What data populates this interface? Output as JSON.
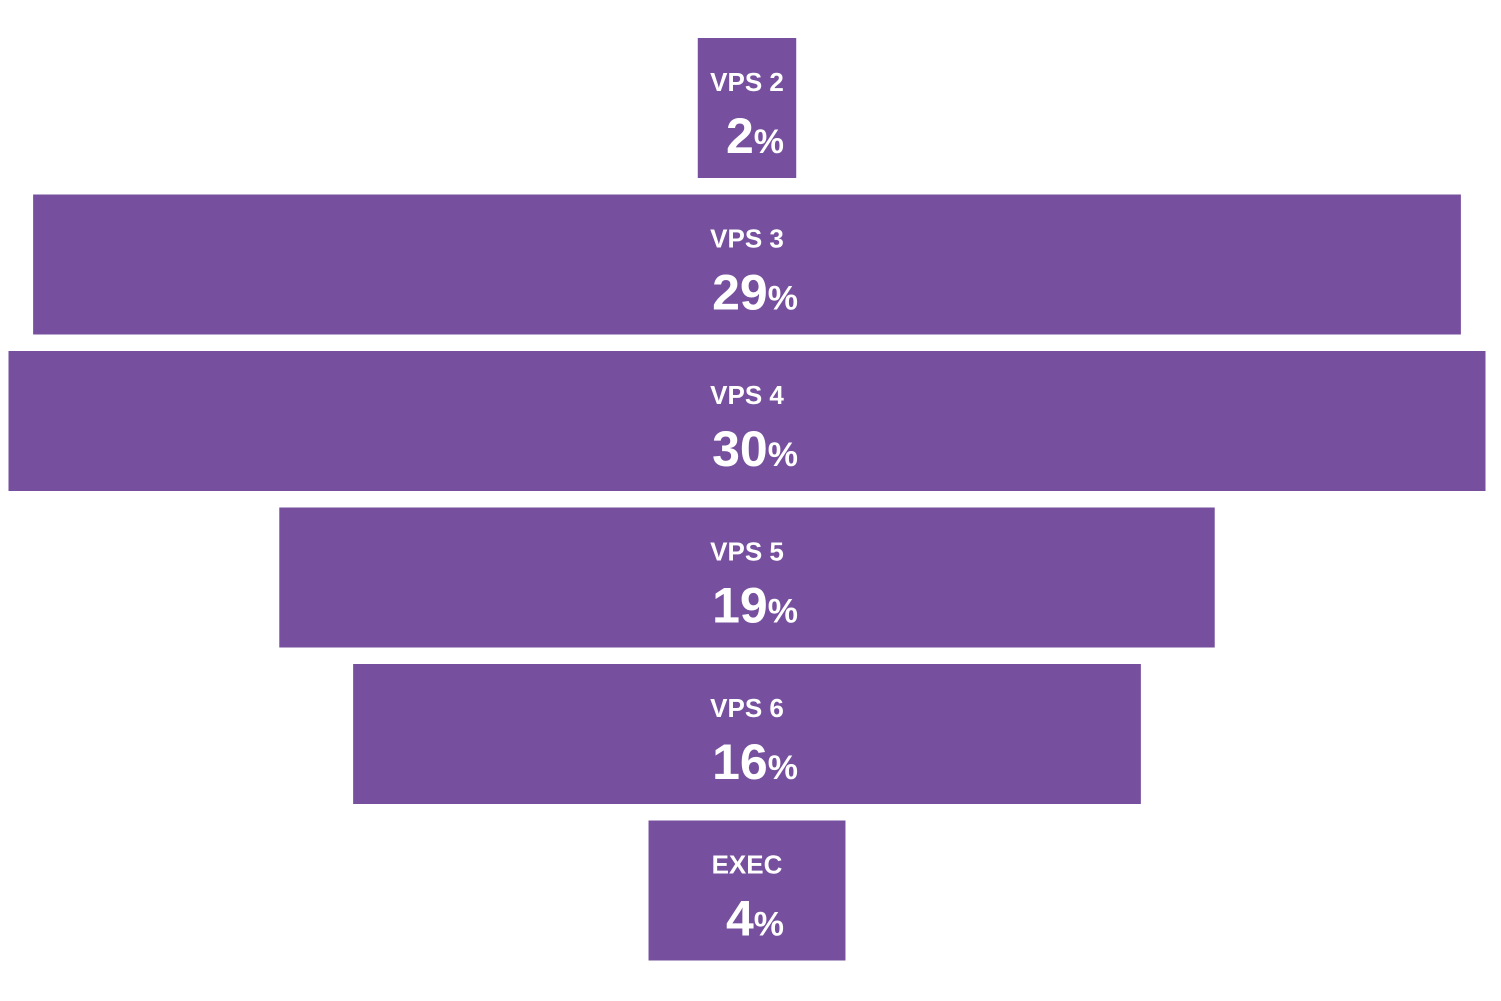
{
  "chart_data": {
    "type": "bar",
    "orientation": "horizontal-centered",
    "categories": [
      "VPS 2",
      "VPS 3",
      "VPS 4",
      "VPS 5",
      "VPS 6",
      "EXEC"
    ],
    "values": [
      2,
      29,
      30,
      19,
      16,
      4
    ],
    "value_labels": [
      "2",
      "29",
      "30",
      "19",
      "16",
      "4"
    ],
    "unit": "%",
    "title": "",
    "xlabel": "",
    "ylabel": "",
    "grid": false,
    "legend": "none",
    "colors": {
      "bar": "#764f9e",
      "text": "#ffffff",
      "background": "#ffffff"
    }
  }
}
